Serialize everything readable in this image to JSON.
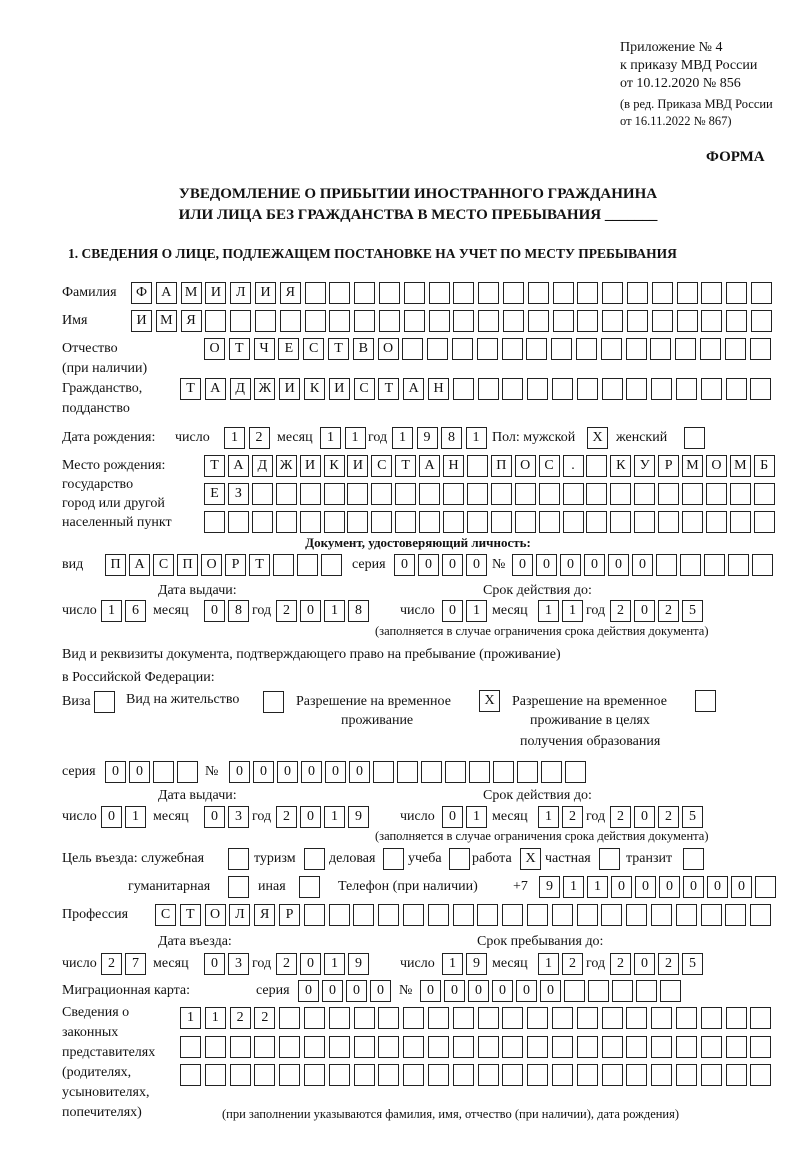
{
  "header": {
    "appendix": "Приложение № 4",
    "order": "к приказу МВД России",
    "order_date": "от 10.12.2020 № 856",
    "edition": "(в ред. Приказа МВД России",
    "edition_date": "от 16.11.2022 № 867)",
    "form_label": "ФОРМА",
    "title_line1": "УВЕДОМЛЕНИЕ О ПРИБЫТИИ ИНОСТРАННОГО ГРАЖДАНИНА",
    "title_line2": "ИЛИ ЛИЦА БЕЗ ГРАЖДАНСТВА В МЕСТО ПРЕБЫВАНИЯ _______",
    "section1": "1. СВЕДЕНИЯ О ЛИЦЕ, ПОДЛЕЖАЩЕМ ПОСТАНОВКЕ НА УЧЕТ ПО МЕСТУ ПРЕБЫВАНИЯ"
  },
  "labels": {
    "surname": "Фамилия",
    "name": "Имя",
    "patronymic": "Отчество",
    "patronymic_note": "(при наличии)",
    "citizenship": "Гражданство,",
    "citizenship2": "подданство",
    "birth_date": "Дата рождения:",
    "day": "число",
    "month": "месяц",
    "year": "год",
    "sex": "Пол: мужской",
    "female": "женский",
    "birthplace": "Место рождения:",
    "birthplace2": "государство",
    "birthplace3": "город или другой",
    "birthplace4": "населенный пункт",
    "id_doc": "Документ, удостоверяющий личность:",
    "kind": "вид",
    "series": "серия",
    "number": "№",
    "issue_date": "Дата выдачи:",
    "valid_until": "Срок действия до:",
    "validity_note": "(заполняется в случае ограничения срока действия документа)",
    "stay_doc": "Вид и реквизиты документа, подтверждающего право на пребывание (проживание)",
    "stay_doc2": "в Российской Федерации:",
    "visa": "Виза",
    "residence": "Вид на жительство",
    "temp_permit": "Разрешение на временное",
    "temp_permit2": "проживание",
    "edu_permit": "Разрешение на временное",
    "edu_permit2": "проживание в целях",
    "edu_permit3": "получения образования",
    "purpose": "Цель въезда: служебная",
    "tourism": "туризм",
    "business": "деловая",
    "study": "учеба",
    "work": "работа",
    "private": "частная",
    "transit": "транзит",
    "humanitarian": "гуманитарная",
    "other": "иная",
    "phone": "Телефон (при наличии)",
    "phone_prefix": "+7",
    "profession": "Профессия",
    "entry_date": "Дата въезда:",
    "stay_until": "Срок пребывания до:",
    "migration_card": "Миграционная карта:",
    "reps1": "Сведения о",
    "reps2": "законных",
    "reps3": "представителях",
    "reps4": "(родителях,",
    "reps5": "усыновителях,",
    "reps6": "попечителях)",
    "reps_note": "(при заполнении указываются фамилия, имя, отчество (при наличии), дата рождения)"
  },
  "person": {
    "surname": "ФАМИЛИЯ",
    "name": "ИМЯ",
    "patronymic": "ОТЧЕСТВО",
    "citizenship": "ТАДЖИКИСТАН",
    "birth_day": "12",
    "birth_month": "11",
    "birth_year": "1981",
    "sex_male": "X",
    "sex_female": "",
    "birthplace1": "ТАДЖИКИСТАН ПОС. КУРМОМБ",
    "birthplace2": "ЕЗ",
    "birthplace3": ""
  },
  "id_document": {
    "kind": "ПАСПОРТ",
    "series": "0000",
    "number": "000000",
    "issue_day": "16",
    "issue_month": "08",
    "issue_year": "2018",
    "valid_day": "01",
    "valid_month": "11",
    "valid_year": "2025"
  },
  "stay_document": {
    "visa": "",
    "residence": "",
    "temp_permit": "X",
    "edu_permit": "",
    "series": "00",
    "number": "000000",
    "issue_day": "01",
    "issue_month": "03",
    "issue_year": "2019",
    "valid_day": "01",
    "valid_month": "12",
    "valid_year": "2025"
  },
  "purpose": {
    "official": "",
    "tourism": "",
    "business": "",
    "study": "",
    "work": "X",
    "private": "",
    "transit": "",
    "humanitarian": "",
    "other": ""
  },
  "phone": "911000000",
  "profession": "СТОЛЯР",
  "entry": {
    "entry_day": "27",
    "entry_month": "03",
    "entry_year": "2019",
    "until_day": "19",
    "until_month": "12",
    "until_year": "2025"
  },
  "migration_card": {
    "series": "0000",
    "number": "000000"
  },
  "representatives": {
    "row1": "1122",
    "row2": "",
    "row3": ""
  }
}
